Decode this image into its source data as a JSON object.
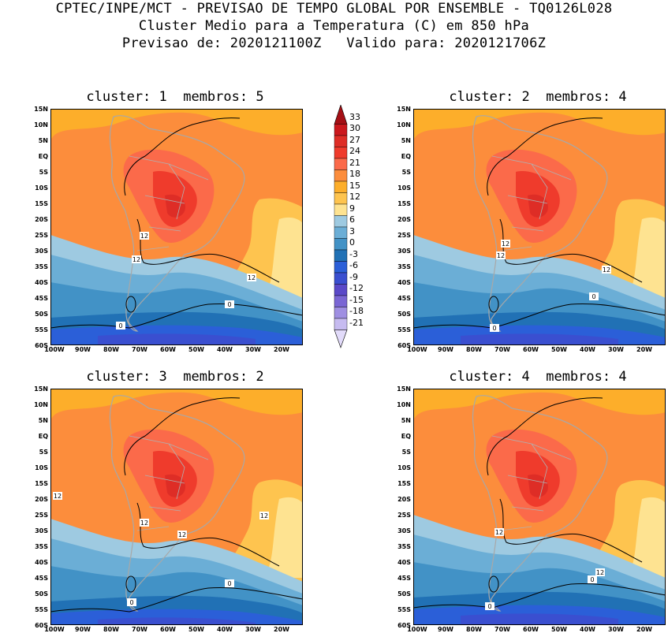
{
  "header": {
    "line1": "CPTEC/INPE/MCT - PREVISAO DE TEMPO GLOBAL POR ENSEMBLE - TQ0126L028",
    "line2": "Cluster Medio para a Temperatura (C) em 850 hPa",
    "line3": "Previsao de: 2020121100Z   Valido para: 2020121706Z"
  },
  "panels": [
    {
      "title": "cluster: 1  membros: 5",
      "contours": [
        "12",
        "12",
        "12",
        "0",
        "0"
      ]
    },
    {
      "title": "cluster: 2  membros: 4",
      "contours": [
        "12",
        "12",
        "12",
        "0",
        "0"
      ]
    },
    {
      "title": "cluster: 3  membros: 2",
      "contours": [
        "12",
        "12",
        "12",
        "12",
        "0",
        "0"
      ]
    },
    {
      "title": "cluster: 4  membros: 4",
      "contours": [
        "12",
        "12",
        "0",
        "0"
      ]
    }
  ],
  "axes": {
    "lat_ticks": [
      "15N",
      "10N",
      "5N",
      "EQ",
      "5S",
      "10S",
      "15S",
      "20S",
      "25S",
      "30S",
      "35S",
      "40S",
      "45S",
      "50S",
      "55S",
      "60S"
    ],
    "lon_ticks": [
      "100W",
      "90W",
      "80W",
      "70W",
      "60W",
      "50W",
      "40W",
      "30W",
      "20W"
    ]
  },
  "colorbar": {
    "labels": [
      "33",
      "30",
      "27",
      "24",
      "21",
      "18",
      "15",
      "12",
      "9",
      "6",
      "3",
      "0",
      "-3",
      "-6",
      "-9",
      "-12",
      "-15",
      "-18",
      "-21"
    ],
    "colors": [
      "#a50f15",
      "#cb181d",
      "#de2d26",
      "#ef3b2c",
      "#fb6a4a",
      "#fc8d3c",
      "#fdae2a",
      "#fec44f",
      "#fee391",
      "#9ecae1",
      "#6baed6",
      "#4292c6",
      "#2171b5",
      "#2b5fd8",
      "#3a4fd0",
      "#5a49c8",
      "#7a66d4",
      "#9f8fe2",
      "#c6bbf0",
      "#e2dbfa"
    ]
  }
}
